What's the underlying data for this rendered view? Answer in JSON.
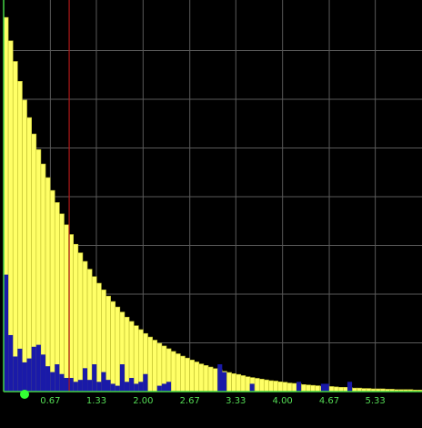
{
  "colors": {
    "background": "#000000",
    "grid": "#5a5a5a",
    "axis": "#44d444",
    "bar_series": "#ffff66",
    "bar_series_edge": "#bdbd2e",
    "overlay_series": "#1a1aa8",
    "marker_line": "#b01818",
    "marker_dot": "#33ff33",
    "tick_text": "#55dd55"
  },
  "chart_data": {
    "type": "bar",
    "title": "",
    "xlabel": "",
    "ylabel": "",
    "xlim": [
      0,
      6.0
    ],
    "ylim": [
      0,
      100
    ],
    "grid": true,
    "grid_x": [
      0.67,
      1.33,
      2.0,
      2.67,
      3.33,
      4.0,
      4.67,
      5.33
    ],
    "grid_y": [
      12.5,
      25,
      37.5,
      50,
      62.5,
      75,
      87.5
    ],
    "x_tick_labels": [
      "0.67",
      "1.33",
      "2.00",
      "2.67",
      "3.33",
      "4.00",
      "4.67",
      "5.33"
    ],
    "bin_width": 0.0667,
    "x_marker": 0.94,
    "x_dot": 0.3,
    "series": [
      {
        "values": [
          96.0,
          90.0,
          84.7,
          79.6,
          74.8,
          70.3,
          66.1,
          62.1,
          58.4,
          54.9,
          51.6,
          48.5,
          45.6,
          42.8,
          40.3,
          37.8,
          35.6,
          33.4,
          31.4,
          29.5,
          27.8,
          26.1,
          24.5,
          23.1,
          21.7,
          20.4,
          19.1,
          18.0,
          16.9,
          15.9,
          14.9,
          14.0,
          13.2,
          12.4,
          11.7,
          11.0,
          10.3,
          9.7,
          9.1,
          8.6,
          8.1,
          7.6,
          7.1,
          6.7,
          6.3,
          5.9,
          5.6,
          5.2,
          4.9,
          4.6,
          4.4,
          4.1,
          3.8,
          3.6,
          3.4,
          3.2,
          3.0,
          2.8,
          2.7,
          2.5,
          2.4,
          2.2,
          2.1,
          2.0,
          1.8,
          1.7,
          1.6,
          1.5,
          1.4,
          1.4,
          1.3,
          1.2,
          1.1,
          1.1,
          1.0,
          0.9,
          0.9,
          0.8,
          0.8,
          0.7,
          0.7,
          0.7,
          0.6,
          0.6,
          0.5,
          0.5,
          0.5,
          0.5,
          0.4,
          0.4
        ]
      },
      {
        "values": [
          30.0,
          14.5,
          9.0,
          11.0,
          7.5,
          8.5,
          11.5,
          12.0,
          9.5,
          6.5,
          5.0,
          7.0,
          4.5,
          3.5,
          3.5,
          2.5,
          3.0,
          6.0,
          3.0,
          7.0,
          2.5,
          5.0,
          3.0,
          2.0,
          1.5,
          7.0,
          2.5,
          3.5,
          2.0,
          2.5,
          0,
          0,
          0,
          1.5,
          2.0,
          2.5,
          0,
          0,
          0,
          0,
          0,
          0,
          0,
          0,
          0,
          0,
          7.0,
          0,
          0,
          0,
          0,
          0,
          0,
          0,
          0,
          0,
          0,
          0,
          0,
          0,
          0,
          0,
          0,
          0,
          0,
          0,
          0,
          0,
          0,
          0,
          0,
          0,
          0,
          0,
          0,
          0,
          0,
          0,
          0,
          0,
          0,
          0,
          0,
          0,
          0,
          0,
          0,
          0,
          0,
          0
        ]
      }
    ],
    "overlay_sparse": [
      {
        "x": 2.0,
        "value": 4.5
      },
      {
        "x": 3.13,
        "value": 5.0
      },
      {
        "x": 3.53,
        "value": 2.0
      },
      {
        "x": 4.2,
        "value": 2.5
      },
      {
        "x": 4.55,
        "value": 2.0
      },
      {
        "x": 4.6,
        "value": 2.0
      },
      {
        "x": 4.93,
        "value": 2.5
      }
    ]
  }
}
